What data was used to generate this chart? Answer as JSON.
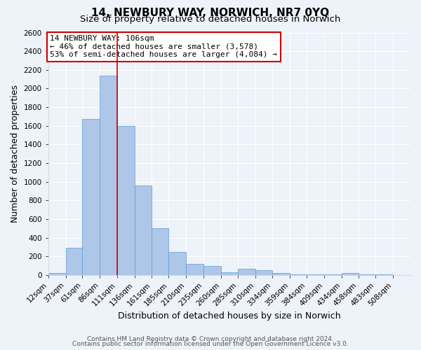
{
  "title": "14, NEWBURY WAY, NORWICH, NR7 0YQ",
  "subtitle": "Size of property relative to detached houses in Norwich",
  "xlabel": "Distribution of detached houses by size in Norwich",
  "ylabel": "Number of detached properties",
  "bin_labels": [
    "12sqm",
    "37sqm",
    "61sqm",
    "86sqm",
    "111sqm",
    "136sqm",
    "161sqm",
    "185sqm",
    "210sqm",
    "235sqm",
    "260sqm",
    "285sqm",
    "310sqm",
    "334sqm",
    "359sqm",
    "384sqm",
    "409sqm",
    "434sqm",
    "458sqm",
    "483sqm",
    "508sqm"
  ],
  "bin_edges": [
    12,
    37,
    61,
    86,
    111,
    136,
    161,
    185,
    210,
    235,
    260,
    285,
    310,
    334,
    359,
    384,
    409,
    434,
    458,
    483,
    508
  ],
  "bar_heights": [
    20,
    290,
    1670,
    2140,
    1600,
    960,
    505,
    250,
    120,
    95,
    30,
    65,
    55,
    25,
    10,
    5,
    5,
    20,
    5,
    5
  ],
  "bar_color": "#aec6e8",
  "bar_edge_color": "#5a9fd4",
  "vline_x": 111,
  "vline_color": "#cc0000",
  "annotation_text": "14 NEWBURY WAY: 106sqm\n← 46% of detached houses are smaller (3,578)\n53% of semi-detached houses are larger (4,084) →",
  "annotation_box_color": "#ffffff",
  "annotation_box_edge_color": "#cc0000",
  "ylim": [
    0,
    2600
  ],
  "yticks": [
    0,
    200,
    400,
    600,
    800,
    1000,
    1200,
    1400,
    1600,
    1800,
    2000,
    2200,
    2400,
    2600
  ],
  "footer_line1": "Contains HM Land Registry data © Crown copyright and database right 2024.",
  "footer_line2": "Contains public sector information licensed under the Open Government Licence v3.0.",
  "background_color": "#eef2f9",
  "grid_color": "#ffffff",
  "title_fontsize": 11,
  "subtitle_fontsize": 9.5,
  "axis_label_fontsize": 9,
  "tick_fontsize": 7.5,
  "annotation_fontsize": 8,
  "footer_fontsize": 6.5
}
